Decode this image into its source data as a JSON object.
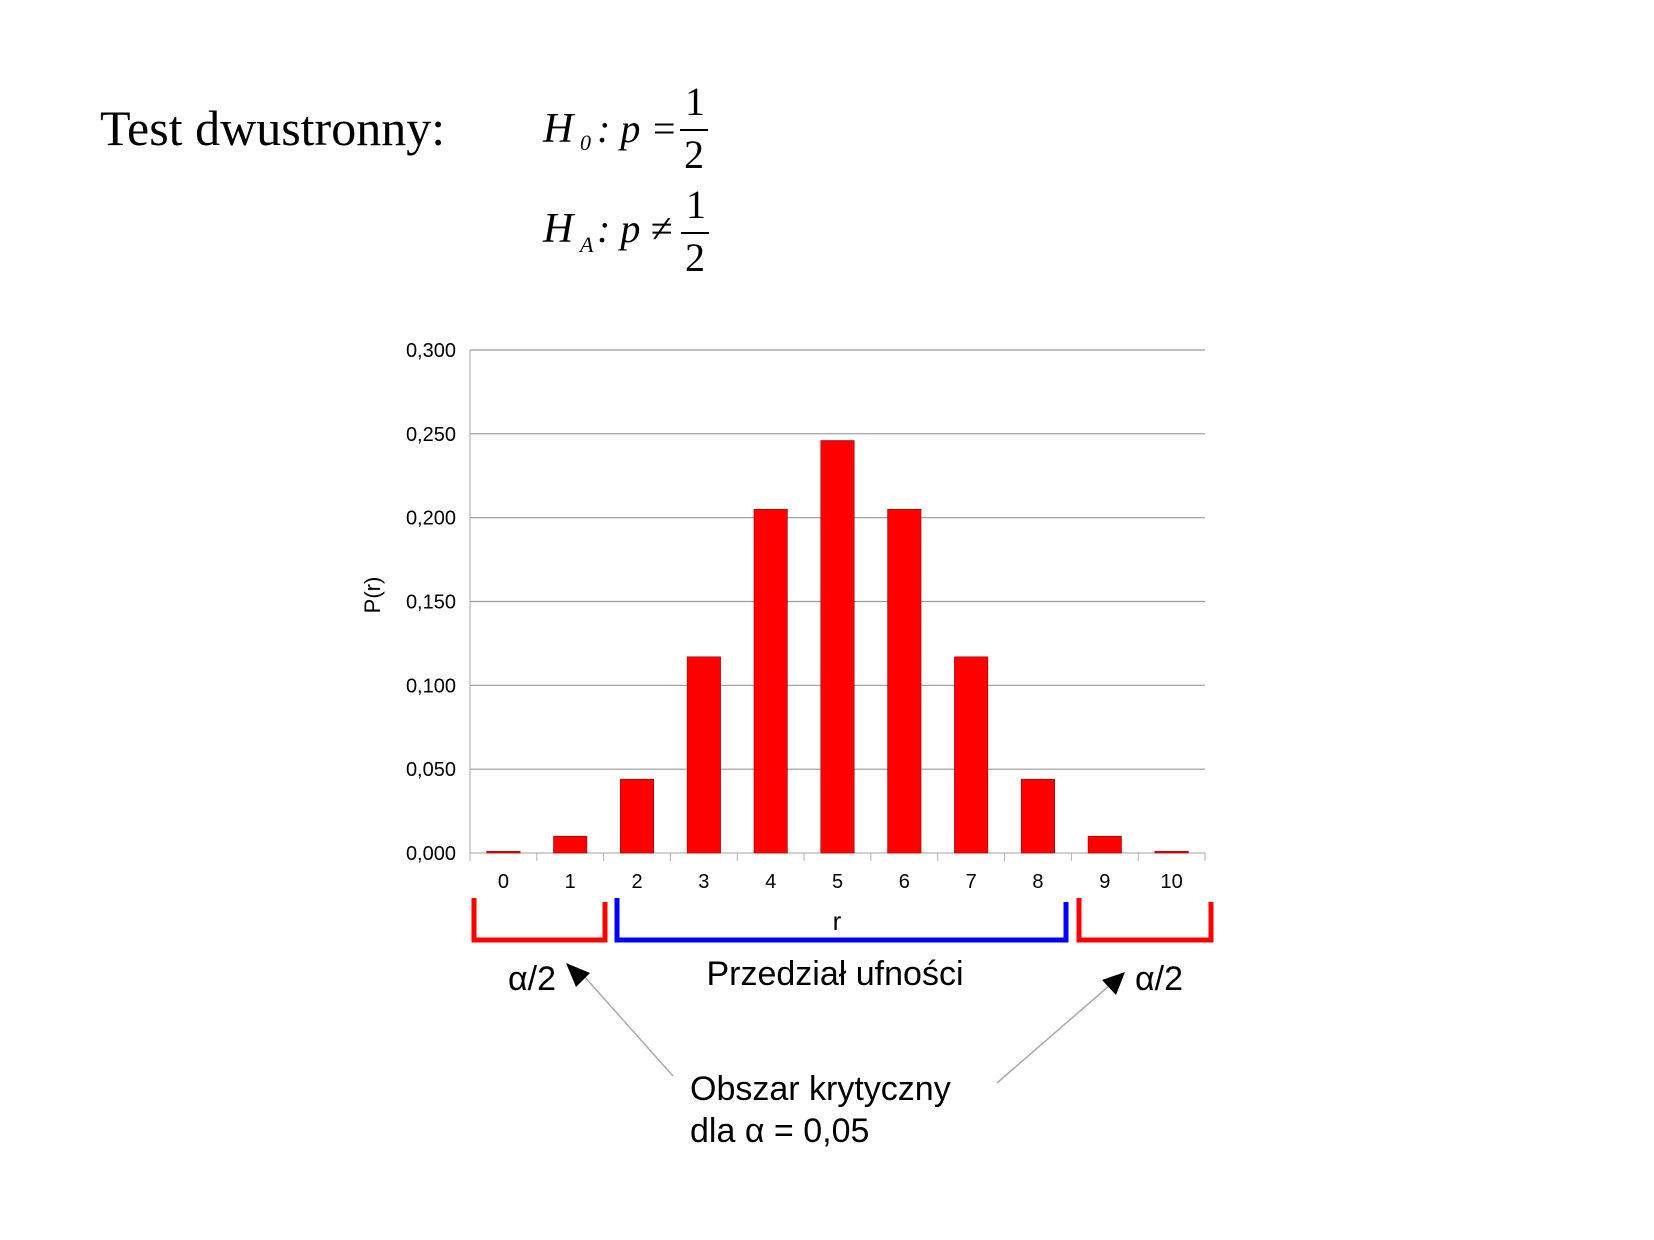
{
  "heading": {
    "title": "Test dwustronny:",
    "h0": {
      "symbol": "H",
      "subscript": "0",
      "relation": ": p =",
      "numerator": "1",
      "denominator": "2"
    },
    "ha": {
      "symbol": "H",
      "subscript": "A",
      "relation": ": p ≠",
      "numerator": "1",
      "denominator": "2"
    }
  },
  "chart_data": {
    "type": "bar",
    "categories": [
      "0",
      "1",
      "2",
      "3",
      "4",
      "5",
      "6",
      "7",
      "8",
      "9",
      "10"
    ],
    "values": [
      0.001,
      0.01,
      0.044,
      0.117,
      0.205,
      0.246,
      0.205,
      0.117,
      0.044,
      0.01,
      0.001
    ],
    "xlabel": "r",
    "ylabel": "P(r)",
    "ylim": [
      0,
      0.3
    ],
    "yticks": [
      "0,000",
      "0,050",
      "0,100",
      "0,150",
      "0,200",
      "0,250",
      "0,300"
    ],
    "ytick_values": [
      0,
      0.05,
      0.1,
      0.15,
      0.2,
      0.25,
      0.3
    ],
    "grid": true,
    "bar_color": "#ff0000"
  },
  "annotations": {
    "left_region": "α/2",
    "right_region": "α/2",
    "confidence_interval": "Przedział ufności",
    "critical_region_line1": "Obszar krytyczny",
    "critical_region_line2": "dla α = 0,05",
    "critical_color": "#ff0000",
    "interval_color": "#0000ff"
  }
}
